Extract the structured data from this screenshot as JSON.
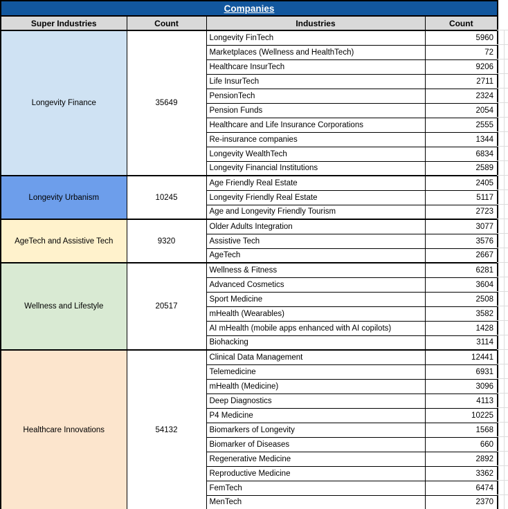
{
  "colors": {
    "title_bar": "#12579E",
    "title_text": "#FFFFFF",
    "header_bg": "#D9D9D9",
    "border": "#000000"
  },
  "chart_data": {
    "type": "table",
    "title": "Companies",
    "columns": [
      "Super Industries",
      "Count",
      "Industries",
      "Count"
    ],
    "groups": [
      {
        "super_industry": "Longevity Finance",
        "count": 35649,
        "color": "#CFE2F3",
        "industries": [
          {
            "name": "Longevity FinTech",
            "count": 5960
          },
          {
            "name": "Marketplaces (Wellness and HealthTech)",
            "count": 72
          },
          {
            "name": "Healthcare InsurTech",
            "count": 9206
          },
          {
            "name": "Life InsurTech",
            "count": 2711
          },
          {
            "name": "PensionTech",
            "count": 2324
          },
          {
            "name": "Pension Funds",
            "count": 2054
          },
          {
            "name": "Healthcare and Life Insurance Corporations",
            "count": 2555
          },
          {
            "name": "Re-insurance companies",
            "count": 1344
          },
          {
            "name": "Longevity WealthTech",
            "count": 6834
          },
          {
            "name": "Longevity Financial Institutions",
            "count": 2589
          }
        ]
      },
      {
        "super_industry": "Longevity Urbanism",
        "count": 10245,
        "color": "#6D9EEB",
        "industries": [
          {
            "name": "Age Friendly Real Estate",
            "count": 2405
          },
          {
            "name": "Longevity Friendly Real Estate",
            "count": 5117
          },
          {
            "name": "Age and Longevity Friendly Tourism",
            "count": 2723
          }
        ]
      },
      {
        "super_industry": "AgeTech and Assistive Tech",
        "count": 9320,
        "color": "#FFF2CC",
        "industries": [
          {
            "name": "Older Adults Integration",
            "count": 3077
          },
          {
            "name": "Assistive Tech",
            "count": 3576
          },
          {
            "name": "AgeTech",
            "count": 2667
          }
        ]
      },
      {
        "super_industry": "Wellness and Lifestyle",
        "count": 20517,
        "color": "#D9EAD3",
        "industries": [
          {
            "name": "Wellness & Fitness",
            "count": 6281
          },
          {
            "name": "Advanced Cosmetics",
            "count": 3604
          },
          {
            "name": "Sport Medicine",
            "count": 2508
          },
          {
            "name": "mHealth (Wearables)",
            "count": 3582
          },
          {
            "name": "AI mHealth (mobile apps enhanced with AI copilots)",
            "count": 1428
          },
          {
            "name": "Biohacking",
            "count": 3114
          }
        ]
      },
      {
        "super_industry": "Healthcare Innovations",
        "count": 54132,
        "color": "#FCE5CD",
        "industries": [
          {
            "name": "Clinical Data Management",
            "count": 12441
          },
          {
            "name": "Telemedicine",
            "count": 6931
          },
          {
            "name": "mHealth (Medicine)",
            "count": 3096
          },
          {
            "name": "Deep Diagnostics",
            "count": 4113
          },
          {
            "name": "P4 Medicine",
            "count": 10225
          },
          {
            "name": "Biomarkers of Longevity",
            "count": 1568
          },
          {
            "name": "Biomarker of Diseases",
            "count": 660
          },
          {
            "name": "Regenerative Medicine",
            "count": 2892
          },
          {
            "name": "Reproductive Medicine",
            "count": 3362
          },
          {
            "name": "FemTech",
            "count": 6474
          },
          {
            "name": "MenTech",
            "count": 2370
          }
        ]
      }
    ]
  }
}
